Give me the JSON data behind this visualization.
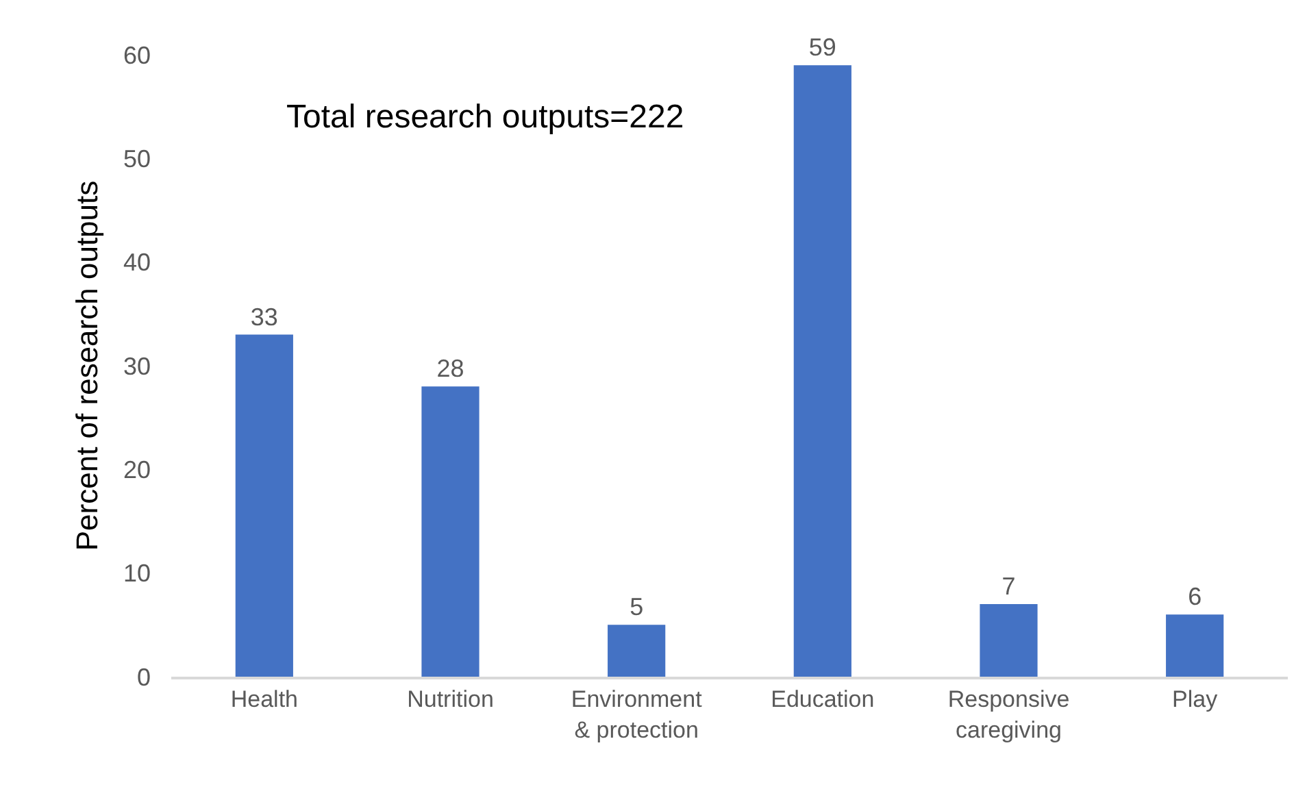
{
  "chart_data": {
    "type": "bar",
    "ylabel": "Percent of research outputs",
    "annotations": [
      "Total research outputs=222"
    ],
    "categories": [
      "Health",
      "Nutrition",
      "Environment\n& protection",
      "Education",
      "Responsive\ncaregiving",
      "Play"
    ],
    "values": [
      33,
      28,
      5,
      59,
      7,
      6
    ],
    "color": "#4472c4",
    "ylim": [
      0,
      60
    ],
    "yticks": [
      0,
      10,
      20,
      30,
      40,
      50,
      60
    ],
    "data_labels": true,
    "grid": false
  }
}
